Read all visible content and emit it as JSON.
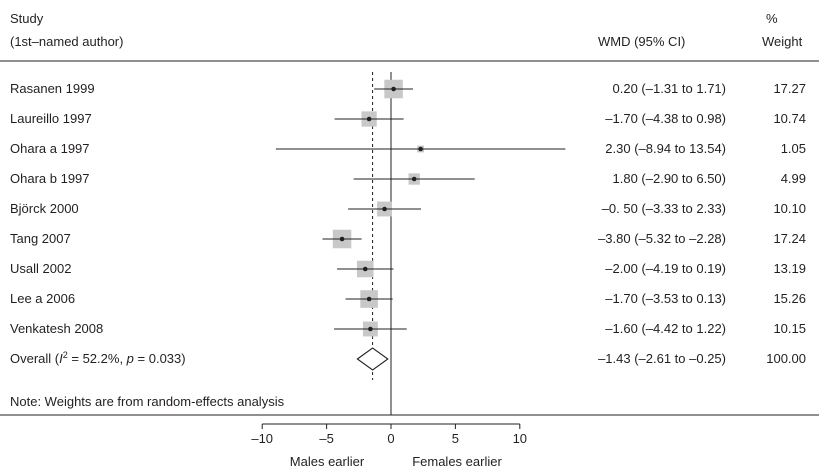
{
  "chart_data": {
    "type": "forest",
    "headers": {
      "study_line1": "Study",
      "study_line2": "(1st–named author)",
      "wmd": "WMD (95% CI)",
      "weight_line1": "%",
      "weight_line2": "Weight"
    },
    "rows": [
      {
        "label": "Rasanen 1999",
        "est": 0.2,
        "lo": -1.31,
        "hi": 1.71,
        "ci_text": "0.20 (–1.31 to 1.71)",
        "weight": 17.27,
        "weight_text": "17.27"
      },
      {
        "label": "Laureillo 1997",
        "est": -1.7,
        "lo": -4.38,
        "hi": 0.98,
        "ci_text": "–1.70 (–4.38 to 0.98)",
        "weight": 10.74,
        "weight_text": "10.74"
      },
      {
        "label": "Ohara a 1997",
        "est": 2.3,
        "lo": -8.94,
        "hi": 13.54,
        "ci_text": "2.30 (–8.94 to 13.54)",
        "weight": 1.05,
        "weight_text": "1.05"
      },
      {
        "label": "Ohara b 1997",
        "est": 1.8,
        "lo": -2.9,
        "hi": 6.5,
        "ci_text": "1.80 (–2.90 to 6.50)",
        "weight": 4.99,
        "weight_text": "4.99"
      },
      {
        "label": "Björck 2000",
        "est": -0.5,
        "lo": -3.33,
        "hi": 2.33,
        "ci_text": "–0. 50 (–3.33 to 2.33)",
        "weight": 10.1,
        "weight_text": "10.10"
      },
      {
        "label": "Tang 2007",
        "est": -3.8,
        "lo": -5.32,
        "hi": -2.28,
        "ci_text": "–3.80 (–5.32 to –2.28)",
        "weight": 17.24,
        "weight_text": "17.24"
      },
      {
        "label": "Usall 2002",
        "est": -2.0,
        "lo": -4.19,
        "hi": 0.19,
        "ci_text": "–2.00 (–4.19 to 0.19)",
        "weight": 13.19,
        "weight_text": "13.19"
      },
      {
        "label": "Lee a 2006",
        "est": -1.7,
        "lo": -3.53,
        "hi": 0.13,
        "ci_text": "–1.70 (–3.53 to 0.13)",
        "weight": 15.26,
        "weight_text": "15.26"
      },
      {
        "label": "Venkatesh 2008",
        "est": -1.6,
        "lo": -4.42,
        "hi": 1.22,
        "ci_text": "–1.60 (–4.42 to 1.22)",
        "weight": 10.15,
        "weight_text": "10.15"
      }
    ],
    "overall": {
      "label_prefix": "Overall",
      "i2_symbol": "I",
      "i2_sup": "2",
      "i2_rest": " = 52.2%, ",
      "p_symbol": "p",
      "p_rest": " = 0.033)",
      "est": -1.43,
      "lo": -2.61,
      "hi": -0.25,
      "ci_text": "–1.43 (–2.61 to –0.25)",
      "weight_text": "100.00"
    },
    "note": "Note: Weights are from random-effects analysis",
    "xaxis": {
      "ticks": [
        -10,
        -5,
        0,
        5,
        10
      ],
      "tick_labels": [
        "–10",
        "–5",
        "0",
        "5",
        "10"
      ],
      "display_range": [
        -10,
        10
      ],
      "left_label": "Males earlier",
      "right_label": "Females earlier"
    },
    "reference_line": 0,
    "box_color": "#c8c8c8",
    "line_color": "#231f20"
  }
}
